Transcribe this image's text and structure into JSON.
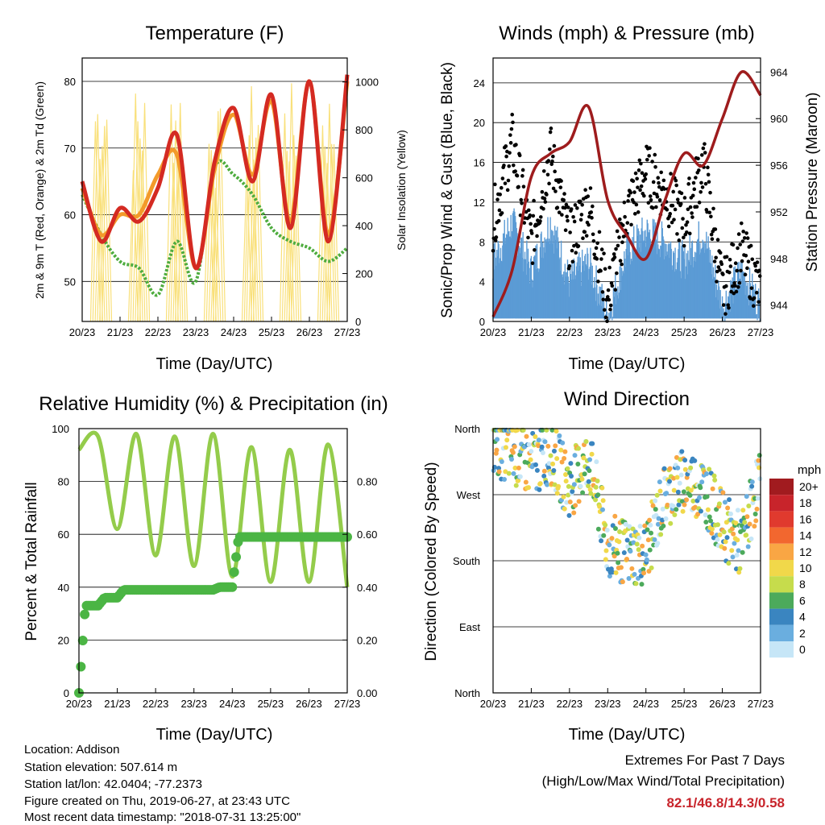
{
  "x_ticks": [
    "20/23",
    "21/23",
    "22/23",
    "23/23",
    "24/23",
    "25/23",
    "26/23",
    "27/23"
  ],
  "x_label": "Time (Day/UTC)",
  "panels": {
    "temperature": {
      "title": "Temperature (F)",
      "ylabel_left": "2m & 9m T (Red, Orange) & 2m Td (Green)",
      "ylabel_right": "Solar Insolation (Yellow)",
      "left_ticks": [
        "50",
        "60",
        "70",
        "80"
      ],
      "right_ticks": [
        "0",
        "200",
        "400",
        "600",
        "800",
        "1000"
      ]
    },
    "winds": {
      "title": "Winds (mph) & Pressure (mb)",
      "ylabel_left": "Sonic/Prop Wind & Gust (Blue, Black)",
      "ylabel_right": "Station Pressure (Maroon)",
      "left_ticks": [
        "0",
        "4",
        "8",
        "12",
        "16",
        "20",
        "24"
      ],
      "right_ticks": [
        "944",
        "948",
        "952",
        "956",
        "960",
        "964"
      ]
    },
    "humidity": {
      "title": "Relative Humidity (%) & Precipitation (in)",
      "ylabel_left": "Percent & Total Rainfall",
      "left_ticks": [
        "0",
        "20",
        "40",
        "60",
        "80",
        "100"
      ],
      "right_ticks": [
        "0.00",
        "0.20",
        "0.40",
        "0.60",
        "0.80"
      ]
    },
    "direction": {
      "title": "Wind Direction",
      "ylabel_left": "Direction (Colored By Speed)",
      "dir_ticks": [
        "North",
        "East",
        "South",
        "West",
        "North"
      ],
      "legend_title": "mph",
      "legend_labels": [
        "20+",
        "18",
        "16",
        "14",
        "12",
        "10",
        "8",
        "6",
        "4",
        "2",
        "0"
      ],
      "legend_colors": [
        "#a11b1f",
        "#c8242b",
        "#e03a2e",
        "#f2672f",
        "#f9a644",
        "#f1d84a",
        "#c6dc4c",
        "#4caa5b",
        "#3a85c0",
        "#6aaedf",
        "#c6e6f7"
      ]
    }
  },
  "footer": {
    "location": "Location: Addison",
    "elevation": "Station elevation: 507.614 m",
    "latlon": "Station lat/lon: 42.0404; -77.2373",
    "created": "Figure created on Thu, 2019-06-27, at 23:43 UTC",
    "timestamp": "Most recent data timestamp: \"2018-07-31 13:25:00\""
  },
  "extremes": {
    "title": "Extremes For Past 7 Days",
    "subtitle": "(High/Low/Max Wind/Total Precipitation)",
    "values": "82.1/46.8/14.3/0.58"
  },
  "chart_data": [
    {
      "type": "line",
      "title": "Temperature (F)",
      "xlabel": "Time (Day/UTC)",
      "x": [
        0,
        0.5,
        1,
        1.5,
        2,
        2.5,
        3,
        3.5,
        4,
        4.5,
        5,
        5.5,
        6,
        6.5,
        7
      ],
      "ylim": [
        44,
        83.5
      ],
      "y2lim": [
        0,
        1100
      ],
      "series": [
        {
          "color": "#d42a22",
          "values": [
            65,
            56,
            61,
            59,
            64,
            72,
            52,
            68,
            76,
            65,
            78,
            58,
            80,
            56,
            81
          ]
        },
        {
          "color": "#f39a2a",
          "values": [
            64,
            57,
            60,
            60,
            66,
            69,
            52,
            67,
            75,
            66,
            77,
            59,
            80,
            57,
            80
          ]
        },
        {
          "color": "#4eac3e",
          "values": [
            63,
            57,
            53,
            52,
            48,
            56,
            50,
            67,
            66,
            63,
            58,
            56,
            55,
            53,
            55
          ]
        },
        {
          "color": "#f9e07a",
          "values": [
            0,
            1050,
            0,
            1000,
            0,
            1050,
            0,
            900,
            0,
            1000,
            0,
            1000,
            0,
            1000,
            0
          ]
        }
      ]
    },
    {
      "type": "scatter",
      "title": "Winds (mph) & Pressure (mb)",
      "xlabel": "Time (Day/UTC)",
      "x": [
        0,
        0.5,
        1,
        1.5,
        2,
        2.5,
        3,
        3.5,
        4,
        4.5,
        5,
        5.5,
        6,
        6.5,
        7
      ],
      "ylim": [
        0,
        26.5
      ],
      "y2lim": [
        942.6,
        965.2
      ],
      "series": [
        {
          "color": "#000000",
          "values": [
            10,
            18,
            8,
            17,
            8,
            12,
            2,
            11,
            15,
            13,
            10,
            16,
            3,
            7,
            3
          ]
        },
        {
          "color": "#5b9bd5",
          "values": [
            6,
            10,
            5,
            10,
            4,
            6,
            0.5,
            7,
            9,
            8,
            6,
            9,
            1.5,
            5,
            1.5
          ]
        },
        {
          "color": "#9e1c1d",
          "values": [
            943,
            947,
            955,
            957,
            958,
            961,
            953,
            950,
            948,
            953,
            957,
            956,
            960,
            964,
            962
          ]
        }
      ]
    },
    {
      "type": "line",
      "title": "Relative Humidity (%) & Precipitation (in)",
      "xlabel": "Time (Day/UTC)",
      "x": [
        0,
        0.5,
        1,
        1.5,
        2,
        2.5,
        3,
        3.5,
        4,
        4.5,
        5,
        5.5,
        6,
        6.5,
        7
      ],
      "ylim": [
        0,
        100
      ],
      "y2lim": [
        0,
        1.0
      ],
      "series": [
        {
          "color": "#94cc4b",
          "values": [
            92,
            97,
            62,
            98,
            52,
            97,
            48,
            98,
            44,
            93,
            42,
            92,
            42,
            94,
            40
          ]
        },
        {
          "color": "#4bb544",
          "values": [
            0,
            0.33,
            0.36,
            0.39,
            0.39,
            0.39,
            0.39,
            0.39,
            0.4,
            0.59,
            0.59,
            0.59,
            0.59,
            0.59,
            0.59
          ]
        }
      ]
    },
    {
      "type": "scatter",
      "title": "Wind Direction",
      "xlabel": "Time (Day/UTC)",
      "x": [
        0,
        0.5,
        1,
        1.5,
        2,
        2.5,
        3,
        3.5,
        4,
        4.5,
        5,
        5.5,
        6,
        6.5,
        7
      ],
      "ylim": [
        0,
        360
      ],
      "series": [
        {
          "values": [
            340,
            330,
            310,
            330,
            280,
            320,
            200,
            190,
            190,
            270,
            290,
            280,
            230,
            200,
            300
          ]
        }
      ]
    }
  ]
}
